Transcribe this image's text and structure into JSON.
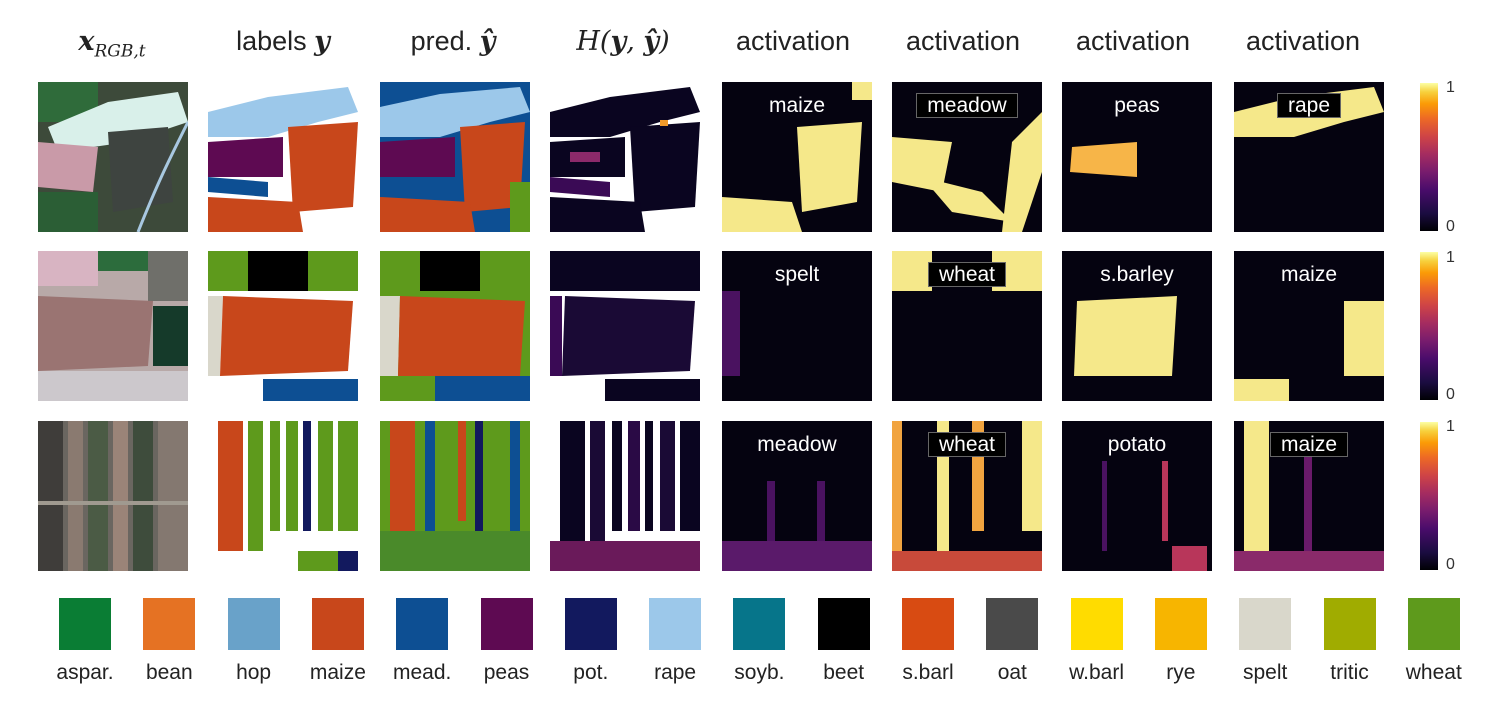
{
  "headers": {
    "rgb": "x_{RGB,t}",
    "labels": "labels y",
    "pred": "pred. ŷ",
    "entropy": "H(y, ŷ)",
    "activation": "activation"
  },
  "rows": [
    {
      "activations": [
        "maize",
        "meadow",
        "peas",
        "rape"
      ]
    },
    {
      "activations": [
        "spelt",
        "wheat",
        "s.barley",
        "maize"
      ]
    },
    {
      "activations": [
        "meadow",
        "wheat",
        "potato",
        "maize"
      ]
    }
  ],
  "colorbar": {
    "max": "1",
    "min": "0"
  },
  "legend": [
    {
      "label": "aspar.",
      "color": "#0a7d34"
    },
    {
      "label": "bean",
      "color": "#e57223"
    },
    {
      "label": "hop",
      "color": "#69a2c9"
    },
    {
      "label": "maize",
      "color": "#c8471b"
    },
    {
      "label": "mead.",
      "color": "#0d4f93"
    },
    {
      "label": "peas",
      "color": "#5e0a52"
    },
    {
      "label": "pot.",
      "color": "#12195e"
    },
    {
      "label": "rape",
      "color": "#9cc8ea"
    },
    {
      "label": "soyb.",
      "color": "#06758a"
    },
    {
      "label": "beet",
      "color": "#000000"
    },
    {
      "label": "s.barl",
      "color": "#d84b12"
    },
    {
      "label": "oat",
      "color": "#4a4a4a"
    },
    {
      "label": "w.barl",
      "color": "#ffdc00"
    },
    {
      "label": "rye",
      "color": "#f7b500"
    },
    {
      "label": "spelt",
      "color": "#d9d7cb"
    },
    {
      "label": "tritic",
      "color": "#a0ac00"
    },
    {
      "label": "wheat",
      "color": "#5e9a1c"
    }
  ]
}
